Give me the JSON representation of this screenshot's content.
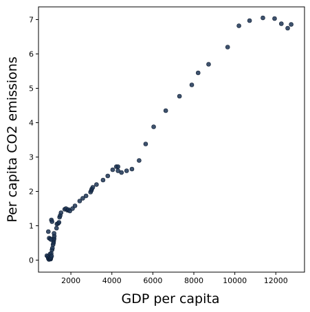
{
  "chart_data": {
    "type": "scatter",
    "title": "",
    "xlabel": "GDP per capita",
    "ylabel": "Per capita CO2 emissions",
    "xlim": [
      420,
      13400
    ],
    "ylim": [
      -0.35,
      7.37
    ],
    "xticks": [
      2000,
      4000,
      6000,
      8000,
      10000,
      12000
    ],
    "yticks": [
      0,
      1,
      2,
      3,
      4,
      5,
      6,
      7
    ],
    "grid": false,
    "marker_color": "#1c3454",
    "marker_edge": "#0b1a30",
    "series": [
      {
        "points": [
          [
            830,
            0.13
          ],
          [
            880,
            0.1
          ],
          [
            900,
            0.05
          ],
          [
            930,
            0.02
          ],
          [
            960,
            0.04
          ],
          [
            980,
            0.1
          ],
          [
            990,
            0.18
          ],
          [
            1000,
            0.04
          ],
          [
            1010,
            0.03
          ],
          [
            1020,
            0.06
          ],
          [
            1030,
            0.08
          ],
          [
            1040,
            0.2
          ],
          [
            1060,
            0.12
          ],
          [
            1080,
            0.3
          ],
          [
            1100,
            0.35
          ],
          [
            1130,
            0.45
          ],
          [
            1150,
            0.5
          ],
          [
            1160,
            0.55
          ],
          [
            1170,
            0.6
          ],
          [
            1180,
            0.63
          ],
          [
            1190,
            0.7
          ],
          [
            1180,
            0.78
          ],
          [
            900,
            0.83
          ],
          [
            940,
            0.64
          ],
          [
            1000,
            0.62
          ],
          [
            1030,
            0.6
          ],
          [
            1050,
            1.17
          ],
          [
            1080,
            1.12
          ],
          [
            1300,
            0.93
          ],
          [
            1320,
            1.05
          ],
          [
            1380,
            1.07
          ],
          [
            1420,
            1.1
          ],
          [
            1450,
            1.25
          ],
          [
            1480,
            1.3
          ],
          [
            1520,
            1.38
          ],
          [
            1700,
            1.48
          ],
          [
            1760,
            1.5
          ],
          [
            1840,
            1.45
          ],
          [
            1880,
            1.47
          ],
          [
            1950,
            1.43
          ],
          [
            2080,
            1.5
          ],
          [
            2200,
            1.58
          ],
          [
            2430,
            1.72
          ],
          [
            2580,
            1.8
          ],
          [
            2740,
            1.87
          ],
          [
            2960,
            1.98
          ],
          [
            3000,
            2.03
          ],
          [
            3020,
            2.07
          ],
          [
            3070,
            2.12
          ],
          [
            3250,
            2.2
          ],
          [
            3570,
            2.33
          ],
          [
            3800,
            2.45
          ],
          [
            4040,
            2.63
          ],
          [
            4220,
            2.72
          ],
          [
            4300,
            2.72
          ],
          [
            4300,
            2.6
          ],
          [
            4470,
            2.55
          ],
          [
            4720,
            2.6
          ],
          [
            4980,
            2.65
          ],
          [
            5330,
            2.9
          ],
          [
            5650,
            3.38
          ],
          [
            6040,
            3.88
          ],
          [
            6630,
            4.35
          ],
          [
            7300,
            4.77
          ],
          [
            7900,
            5.1
          ],
          [
            8210,
            5.45
          ],
          [
            8720,
            5.7
          ],
          [
            9650,
            6.2
          ],
          [
            10200,
            6.82
          ],
          [
            10720,
            6.97
          ],
          [
            11370,
            7.05
          ],
          [
            11940,
            7.03
          ],
          [
            12270,
            6.88
          ],
          [
            12580,
            6.75
          ],
          [
            12750,
            6.86
          ]
        ]
      }
    ]
  }
}
